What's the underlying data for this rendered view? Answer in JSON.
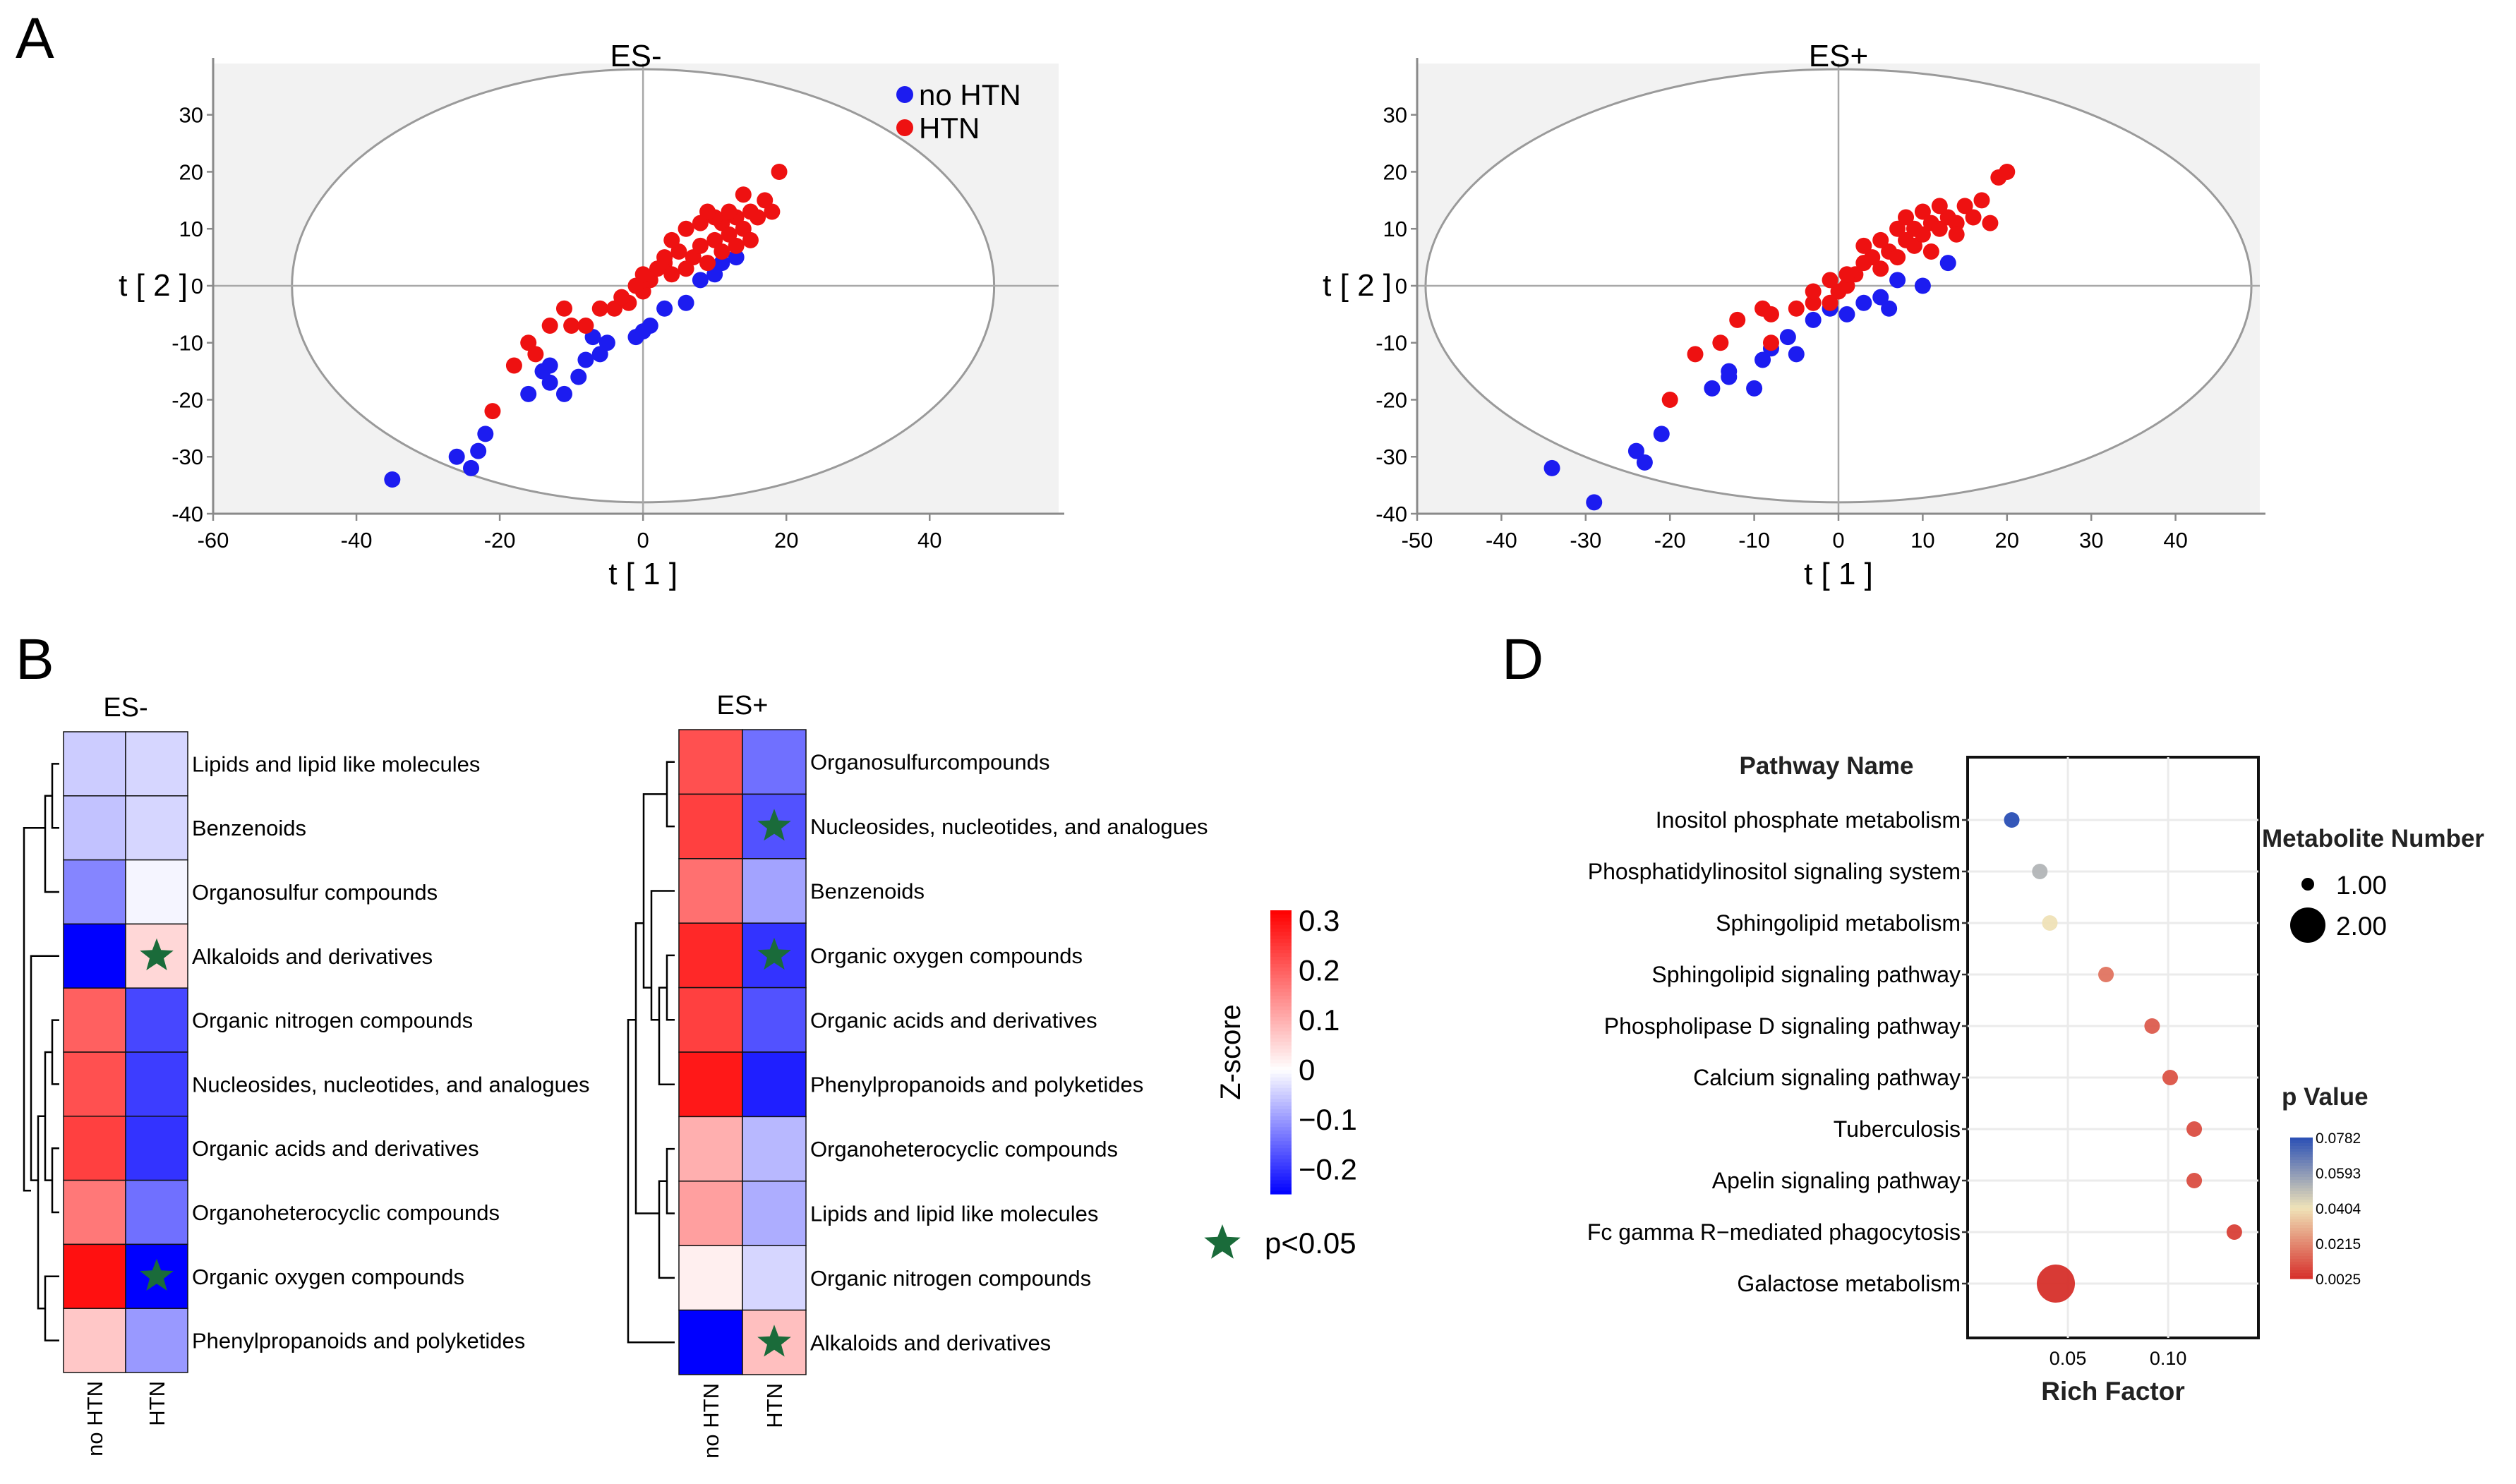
{
  "panel_labels": {
    "a": "A",
    "b": "B",
    "d": "D"
  },
  "colors": {
    "no_htn": "#1c1cf0",
    "htn": "#ee1111",
    "star": "#1a6b3a",
    "plot_bg": "#f2f2f2",
    "heat_low": "#0000ff",
    "heat_high": "#ff0000"
  },
  "chart_data": [
    {
      "id": "scatter-es-minus",
      "type": "scatter",
      "title": "ES-",
      "xlabel": "t [ 1 ]",
      "ylabel": "t [ 2 ]",
      "xlim": [
        -60,
        58
      ],
      "ylim": [
        -40,
        39
      ],
      "xticks": [
        -60,
        -40,
        -20,
        0,
        20,
        40
      ],
      "yticks": [
        -40,
        -30,
        -20,
        -10,
        0,
        10,
        20,
        30
      ],
      "ellipse": {
        "rx": 49,
        "ry": 38
      },
      "legend": [
        "no HTN",
        "HTN"
      ],
      "series": [
        {
          "name": "no HTN",
          "points": [
            [
              -35,
              -34
            ],
            [
              -26,
              -30
            ],
            [
              -24,
              -32
            ],
            [
              -23,
              -29
            ],
            [
              -22,
              -26
            ],
            [
              -16,
              -19
            ],
            [
              -14,
              -15
            ],
            [
              -13,
              -17
            ],
            [
              -13,
              -14
            ],
            [
              -11,
              -19
            ],
            [
              -9,
              -16
            ],
            [
              -8,
              -13
            ],
            [
              -6,
              -12
            ],
            [
              -5,
              -10
            ],
            [
              -1,
              -9
            ],
            [
              1,
              -7
            ],
            [
              3,
              -4
            ],
            [
              6,
              -3
            ],
            [
              8,
              1
            ],
            [
              10,
              2
            ],
            [
              11,
              4
            ],
            [
              13,
              5
            ],
            [
              -7,
              -9
            ],
            [
              0,
              -8
            ]
          ]
        },
        {
          "name": "HTN",
          "points": [
            [
              -21,
              -22
            ],
            [
              -18,
              -14
            ],
            [
              -16,
              -10
            ],
            [
              -15,
              -12
            ],
            [
              -13,
              -7
            ],
            [
              -11,
              -4
            ],
            [
              -10,
              -7
            ],
            [
              -8,
              -7
            ],
            [
              -6,
              -4
            ],
            [
              -4,
              -4
            ],
            [
              -2,
              -3
            ],
            [
              0,
              -1
            ],
            [
              1,
              1
            ],
            [
              2,
              3
            ],
            [
              3,
              4
            ],
            [
              4,
              2
            ],
            [
              5,
              6
            ],
            [
              6,
              3
            ],
            [
              7,
              5
            ],
            [
              8,
              7
            ],
            [
              9,
              4
            ],
            [
              10,
              8
            ],
            [
              11,
              11
            ],
            [
              12,
              9
            ],
            [
              13,
              12
            ],
            [
              14,
              10
            ],
            [
              15,
              13
            ],
            [
              16,
              12
            ],
            [
              17,
              15
            ],
            [
              18,
              13
            ],
            [
              19,
              20
            ],
            [
              12,
              13
            ],
            [
              14,
              16
            ],
            [
              10,
              12
            ],
            [
              11,
              6
            ],
            [
              8,
              11
            ],
            [
              15,
              8
            ],
            [
              6,
              10
            ],
            [
              4,
              8
            ],
            [
              3,
              5
            ],
            [
              0,
              2
            ],
            [
              -1,
              0
            ],
            [
              -3,
              -2
            ],
            [
              9,
              13
            ],
            [
              13,
              7
            ]
          ]
        }
      ]
    },
    {
      "id": "scatter-es-plus",
      "type": "scatter",
      "title": "ES+",
      "xlabel": "t [ 1 ]",
      "ylabel": "t [ 2 ]",
      "xlim": [
        -50,
        50
      ],
      "ylim": [
        -40,
        39
      ],
      "xticks": [
        -50,
        -40,
        -30,
        -20,
        -10,
        0,
        10,
        20,
        30,
        40
      ],
      "yticks": [
        -40,
        -30,
        -20,
        -10,
        0,
        10,
        20,
        30
      ],
      "ellipse": {
        "rx": 49,
        "ry": 38
      },
      "legend": [],
      "series": [
        {
          "name": "no HTN",
          "points": [
            [
              -34,
              -32
            ],
            [
              -29,
              -38
            ],
            [
              -24,
              -29
            ],
            [
              -23,
              -31
            ],
            [
              -21,
              -26
            ],
            [
              -15,
              -18
            ],
            [
              -13,
              -16
            ],
            [
              -13,
              -15
            ],
            [
              -10,
              -18
            ],
            [
              -9,
              -13
            ],
            [
              -8,
              -11
            ],
            [
              -5,
              -12
            ],
            [
              -3,
              -6
            ],
            [
              -1,
              -4
            ],
            [
              3,
              -3
            ],
            [
              5,
              -2
            ],
            [
              6,
              -4
            ],
            [
              7,
              1
            ],
            [
              10,
              0
            ],
            [
              13,
              4
            ],
            [
              -6,
              -9
            ],
            [
              1,
              -5
            ]
          ]
        },
        {
          "name": "HTN",
          "points": [
            [
              -20,
              -20
            ],
            [
              -17,
              -12
            ],
            [
              -14,
              -10
            ],
            [
              -12,
              -6
            ],
            [
              -9,
              -4
            ],
            [
              -8,
              -5
            ],
            [
              -8,
              -10
            ],
            [
              -5,
              -4
            ],
            [
              -3,
              -3
            ],
            [
              -1,
              -3
            ],
            [
              0,
              -1
            ],
            [
              1,
              0
            ],
            [
              2,
              2
            ],
            [
              3,
              4
            ],
            [
              4,
              5
            ],
            [
              5,
              3
            ],
            [
              6,
              6
            ],
            [
              7,
              5
            ],
            [
              8,
              8
            ],
            [
              9,
              7
            ],
            [
              10,
              9
            ],
            [
              11,
              11
            ],
            [
              12,
              10
            ],
            [
              13,
              12
            ],
            [
              14,
              11
            ],
            [
              15,
              14
            ],
            [
              16,
              12
            ],
            [
              17,
              15
            ],
            [
              18,
              11
            ],
            [
              19,
              19
            ],
            [
              20,
              20
            ],
            [
              10,
              13
            ],
            [
              12,
              14
            ],
            [
              8,
              12
            ],
            [
              14,
              9
            ],
            [
              7,
              10
            ],
            [
              5,
              8
            ],
            [
              3,
              7
            ],
            [
              1,
              2
            ],
            [
              -1,
              1
            ],
            [
              -3,
              -1
            ],
            [
              11,
              6
            ],
            [
              9,
              10
            ]
          ]
        }
      ]
    },
    {
      "id": "heatmap-es-minus",
      "type": "heatmap",
      "title": "ES-",
      "columns": [
        "no HTN",
        "HTN"
      ],
      "rows": [
        "Lipids and lipid like molecules",
        "Benzenoids",
        "Organosulfur compounds",
        "Alkaloids and derivatives",
        "Organic nitrogen compounds",
        "Nucleosides, nucleotides, and analogues",
        "Organic acids and derivatives",
        "Organoheterocyclic compounds",
        "Organic oxygen compounds",
        "Phenylpropanoids and polyketides"
      ],
      "values": [
        [
          -0.05,
          -0.04
        ],
        [
          -0.06,
          -0.04
        ],
        [
          -0.12,
          -0.01
        ],
        [
          -0.25,
          0.05
        ],
        [
          0.2,
          -0.18
        ],
        [
          0.22,
          -0.19
        ],
        [
          0.24,
          -0.2
        ],
        [
          0.17,
          -0.14
        ],
        [
          0.3,
          -0.25
        ],
        [
          0.07,
          -0.1
        ]
      ],
      "significant": [
        [
          3,
          1
        ],
        [
          8,
          1
        ]
      ]
    },
    {
      "id": "heatmap-es-plus",
      "type": "heatmap",
      "title": "ES+",
      "columns": [
        "no HTN",
        "HTN"
      ],
      "rows": [
        "Organosulfurcompounds",
        "Nucleosides, nucleotides, and analogues",
        "Benzenoids",
        "Organic oxygen compounds",
        "Organic acids and derivatives",
        "Phenylpropanoids and polyketides",
        "Organoheterocyclic compounds",
        "Lipids and lipid like molecules",
        "Organic nitrogen compounds",
        "Alkaloids and derivatives"
      ],
      "values": [
        [
          0.22,
          -0.14
        ],
        [
          0.24,
          -0.17
        ],
        [
          0.18,
          -0.09
        ],
        [
          0.27,
          -0.2
        ],
        [
          0.24,
          -0.17
        ],
        [
          0.29,
          -0.22
        ],
        [
          0.1,
          -0.07
        ],
        [
          0.12,
          -0.08
        ],
        [
          0.02,
          -0.04
        ],
        [
          -0.3,
          0.08
        ]
      ],
      "significant": [
        [
          1,
          1
        ],
        [
          3,
          1
        ],
        [
          9,
          1
        ]
      ]
    },
    {
      "id": "heatmap-legend",
      "type": "colorbar",
      "label": "Z-score",
      "range": [
        -0.25,
        0.32
      ],
      "ticks": [
        {
          "value": 0.3,
          "label": "0.3"
        },
        {
          "value": 0.2,
          "label": "0.2"
        },
        {
          "value": 0.1,
          "label": "0.1"
        },
        {
          "value": 0,
          "label": "0"
        },
        {
          "value": -0.1,
          "label": "−0.1"
        },
        {
          "value": -0.2,
          "label": "−0.2"
        }
      ],
      "significance_label": "p<0.05"
    },
    {
      "id": "bubble-kegg",
      "type": "scatter",
      "subtype": "bubble",
      "title": "Pathway Name",
      "xlabel": "Rich Factor",
      "xlim": [
        0.0,
        0.145
      ],
      "xticks": [
        {
          "value": 0.05,
          "label": "0.05"
        },
        {
          "value": 0.1,
          "label": "0.10"
        }
      ],
      "pathways": [
        {
          "name": "Inositol phosphate metabolism",
          "rich_factor": 0.022,
          "p_value": 0.0782,
          "metabolites": 1
        },
        {
          "name": "Phosphatidylinositol signaling system",
          "rich_factor": 0.036,
          "p_value": 0.052,
          "metabolites": 1
        },
        {
          "name": "Sphingolipid metabolism",
          "rich_factor": 0.041,
          "p_value": 0.04,
          "metabolites": 1
        },
        {
          "name": "Sphingolipid signaling pathway",
          "rich_factor": 0.069,
          "p_value": 0.017,
          "metabolites": 1
        },
        {
          "name": "Phospholipase D signaling pathway",
          "rich_factor": 0.092,
          "p_value": 0.012,
          "metabolites": 1
        },
        {
          "name": "Calcium signaling pathway",
          "rich_factor": 0.101,
          "p_value": 0.01,
          "metabolites": 1
        },
        {
          "name": "Tuberculosis",
          "rich_factor": 0.113,
          "p_value": 0.009,
          "metabolites": 1
        },
        {
          "name": "Apelin signaling pathway",
          "rich_factor": 0.113,
          "p_value": 0.009,
          "metabolites": 1
        },
        {
          "name": "Fc gamma R−mediated phagocytosis",
          "rich_factor": 0.133,
          "p_value": 0.006,
          "metabolites": 1
        },
        {
          "name": "Galactose metabolism",
          "rich_factor": 0.044,
          "p_value": 0.0025,
          "metabolites": 2
        }
      ],
      "size_legend": {
        "title": "Metabolite Number",
        "items": [
          {
            "value": 1,
            "label": "1.00"
          },
          {
            "value": 2,
            "label": "2.00"
          }
        ]
      },
      "color_legend": {
        "title": "p Value",
        "range": [
          0.0025,
          0.0782
        ],
        "ticks": [
          "0.0782",
          "0.0593",
          "0.0404",
          "0.0215",
          "0.0025"
        ]
      }
    }
  ]
}
